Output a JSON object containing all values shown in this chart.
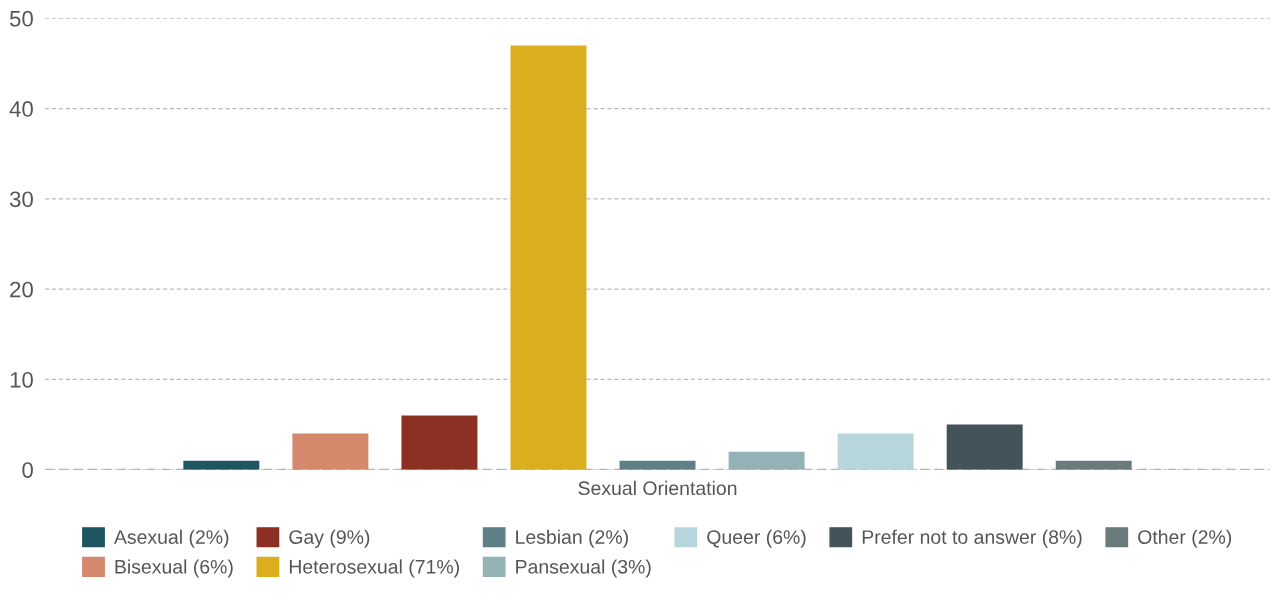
{
  "chart_data": {
    "type": "bar",
    "categories": [
      "Sexual Orientation"
    ],
    "series": [
      {
        "name": "Asexual (2%)",
        "color": "#1f5560",
        "values": [
          1
        ]
      },
      {
        "name": "Bisexual (6%)",
        "color": "#d4896c",
        "values": [
          4
        ]
      },
      {
        "name": "Gay (9%)",
        "color": "#8b3022",
        "values": [
          6
        ]
      },
      {
        "name": "Heterosexual (71%)",
        "color": "#dbae20",
        "values": [
          47
        ]
      },
      {
        "name": "Lesbian (2%)",
        "color": "#5f7f86",
        "values": [
          1
        ]
      },
      {
        "name": "Pansexual (3%)",
        "color": "#94b2b6",
        "values": [
          2
        ]
      },
      {
        "name": "Queer (6%)",
        "color": "#b7d6dc",
        "values": [
          4
        ]
      },
      {
        "name": "Prefer not to answer (8%)",
        "color": "#44535a",
        "values": [
          5
        ]
      },
      {
        "name": "Other (2%)",
        "color": "#6b7b7b",
        "values": [
          1
        ]
      }
    ],
    "ylim": [
      0,
      50
    ],
    "yticks": [
      0,
      10,
      20,
      30,
      40,
      50
    ],
    "grid": "y",
    "legend": "bottom"
  }
}
